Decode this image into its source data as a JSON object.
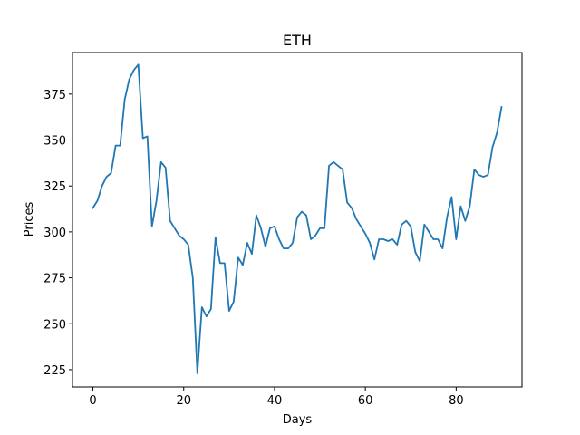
{
  "chart_data": {
    "type": "line",
    "title": "ETH",
    "xlabel": "Days",
    "ylabel": "Prices",
    "xlim": [
      -4.5,
      94.5
    ],
    "ylim": [
      215.6,
      397.6
    ],
    "xticks": [
      0,
      20,
      40,
      60,
      80
    ],
    "yticks": [
      225,
      250,
      275,
      300,
      325,
      350,
      375
    ],
    "grid": false,
    "line_color": "#1f77b4",
    "series": [
      {
        "x": [
          0,
          1,
          2,
          3,
          4,
          5,
          6,
          7,
          8,
          9,
          10,
          11,
          12,
          13,
          14,
          15,
          16,
          17,
          18,
          19,
          20,
          21,
          22,
          23,
          24,
          25,
          26,
          27,
          28,
          29,
          30,
          31,
          32,
          33,
          34,
          35,
          36,
          37,
          38,
          39,
          40,
          41,
          42,
          43,
          44,
          45,
          46,
          47,
          48,
          49,
          50,
          51,
          52,
          53,
          54,
          55,
          56,
          57,
          58,
          59,
          60,
          61,
          62,
          63,
          64,
          65,
          66,
          67,
          68,
          69,
          70,
          71,
          72,
          73,
          74,
          75,
          76,
          77,
          78,
          79,
          80,
          81,
          82,
          83,
          84,
          85,
          86,
          87,
          88,
          89,
          90
        ],
        "values": [
          313,
          317,
          325,
          330,
          332,
          347,
          347,
          372,
          383,
          388,
          391,
          351,
          352,
          303,
          317,
          338,
          335,
          306,
          302,
          298,
          296,
          293,
          275,
          223,
          259,
          254,
          258,
          297,
          283,
          283,
          257,
          262,
          286,
          282,
          294,
          288,
          309,
          302,
          292,
          302,
          303,
          296,
          291,
          291,
          294,
          308,
          311,
          309,
          296,
          298,
          302,
          302,
          336,
          338,
          336,
          334,
          316,
          313,
          307,
          303,
          299,
          294,
          285,
          296,
          296,
          295,
          296,
          293,
          304,
          306,
          303,
          289,
          284,
          304,
          300,
          296,
          296,
          291,
          308,
          319,
          296,
          314,
          306,
          314,
          334,
          331,
          330,
          331,
          346,
          354,
          368
        ]
      }
    ]
  }
}
